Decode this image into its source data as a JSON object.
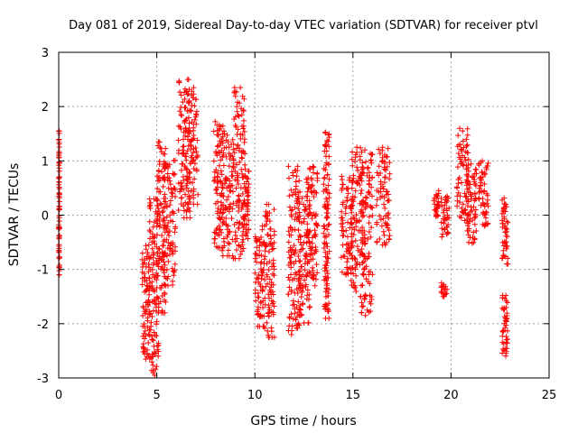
{
  "chart_data": {
    "type": "scatter",
    "title": "Day 081 of 2019, Sidereal Day-to-day VTEC variation (SDTVAR) for receiver ptvl",
    "xlabel": "GPS time / hours",
    "ylabel": "SDTVAR / TECUs",
    "xlim": [
      0,
      25
    ],
    "ylim": [
      -3,
      3
    ],
    "xticks": [
      0,
      5,
      10,
      15,
      20,
      25
    ],
    "yticks": [
      -3,
      -2,
      -1,
      0,
      1,
      2,
      3
    ],
    "xtick_labels": [
      "0",
      "5",
      "10",
      "15",
      "20",
      "25"
    ],
    "ytick_labels": [
      "-3",
      "-2",
      "-1",
      "0",
      "1",
      "2",
      "3"
    ],
    "grid": true,
    "marker": "+",
    "color": "#ff0000",
    "series": [
      {
        "name": "SDTVAR",
        "clusters": [
          {
            "x": [
              0.0,
              0.05
            ],
            "y": [
              -1.1,
              1.55
            ]
          },
          {
            "x": [
              4.25,
              4.65
            ],
            "y": [
              -2.65,
              -0.55
            ]
          },
          {
            "x": [
              4.6,
              5.1
            ],
            "y": [
              -2.95,
              0.3
            ]
          },
          {
            "x": [
              5.0,
              5.45
            ],
            "y": [
              -1.8,
              1.35
            ]
          },
          {
            "x": [
              5.35,
              5.95
            ],
            "y": [
              -1.3,
              1.1
            ]
          },
          {
            "x": [
              6.1,
              6.7
            ],
            "y": [
              -0.05,
              2.5
            ]
          },
          {
            "x": [
              6.5,
              7.1
            ],
            "y": [
              0.2,
              2.35
            ]
          },
          {
            "x": [
              7.9,
              8.4
            ],
            "y": [
              -0.6,
              1.75
            ]
          },
          {
            "x": [
              8.3,
              8.9
            ],
            "y": [
              -0.75,
              1.55
            ]
          },
          {
            "x": [
              8.9,
              9.5
            ],
            "y": [
              -0.8,
              2.35
            ]
          },
          {
            "x": [
              9.4,
              9.7
            ],
            "y": [
              -0.45,
              0.85
            ]
          },
          {
            "x": [
              10.0,
              10.5
            ],
            "y": [
              -2.05,
              -0.2
            ]
          },
          {
            "x": [
              10.5,
              11.0
            ],
            "y": [
              -2.25,
              0.2
            ]
          },
          {
            "x": [
              11.7,
              12.3
            ],
            "y": [
              -2.2,
              0.9
            ]
          },
          {
            "x": [
              12.2,
              12.8
            ],
            "y": [
              -2.0,
              0.35
            ]
          },
          {
            "x": [
              12.6,
              13.2
            ],
            "y": [
              -1.3,
              0.95
            ]
          },
          {
            "x": [
              13.5,
              13.8
            ],
            "y": [
              -1.9,
              1.55
            ]
          },
          {
            "x": [
              14.4,
              15.0
            ],
            "y": [
              -1.1,
              0.75
            ]
          },
          {
            "x": [
              14.9,
              15.5
            ],
            "y": [
              -1.5,
              1.25
            ]
          },
          {
            "x": [
              15.4,
              16.0
            ],
            "y": [
              -1.85,
              1.2
            ]
          },
          {
            "x": [
              16.2,
              16.9
            ],
            "y": [
              -0.55,
              1.25
            ]
          },
          {
            "x": [
              19.1,
              19.4
            ],
            "y": [
              -0.05,
              0.45
            ]
          },
          {
            "x": [
              19.5,
              19.8
            ],
            "y": [
              -1.5,
              -1.25
            ]
          },
          {
            "x": [
              19.5,
              19.9
            ],
            "y": [
              -0.4,
              0.4
            ]
          },
          {
            "x": [
              20.3,
              20.9
            ],
            "y": [
              -0.1,
              1.6
            ]
          },
          {
            "x": [
              20.8,
              21.3
            ],
            "y": [
              -0.55,
              0.95
            ]
          },
          {
            "x": [
              21.4,
              21.9
            ],
            "y": [
              -0.2,
              1.0
            ]
          },
          {
            "x": [
              22.6,
              22.9
            ],
            "y": [
              -2.6,
              -1.45
            ]
          },
          {
            "x": [
              22.6,
              22.9
            ],
            "y": [
              -0.9,
              0.35
            ]
          }
        ]
      }
    ]
  }
}
